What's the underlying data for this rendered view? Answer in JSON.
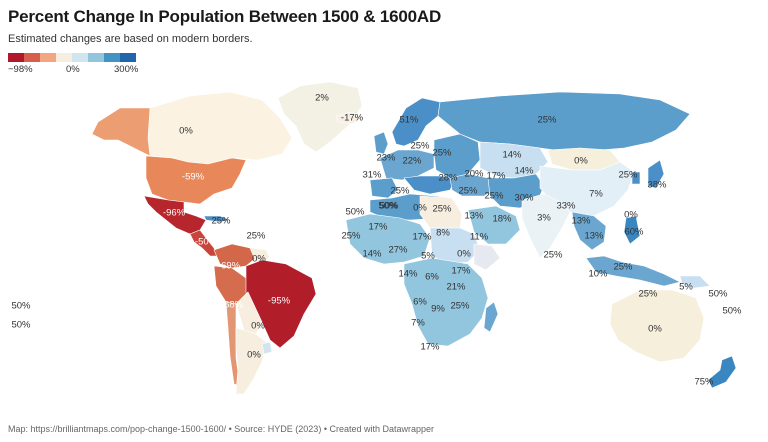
{
  "header": {
    "title": "Percent Change In Population Between 1500 & 1600AD",
    "subtitle": "Estimated changes are based on modern borders."
  },
  "legend": {
    "min_label": "−98%",
    "mid_label": "0%",
    "max_label": "300%",
    "colors": [
      "#b2182b",
      "#d6604d",
      "#f4a582",
      "#f7eee0",
      "#d1e5f0",
      "#92c5de",
      "#4393c3",
      "#2166ac"
    ]
  },
  "map": {
    "labels": [
      {
        "text": "2%",
        "key": "greenland"
      },
      {
        "text": "-17%",
        "key": "iceland"
      },
      {
        "text": "0%",
        "key": "canada"
      },
      {
        "text": "-59%",
        "key": "usa"
      },
      {
        "text": "-96%",
        "key": "mexico"
      },
      {
        "text": "25%",
        "key": "cuba"
      },
      {
        "text": "-50%",
        "key": "central-america"
      },
      {
        "text": "25%",
        "key": "dominican"
      },
      {
        "text": "-69%",
        "key": "venezuela"
      },
      {
        "text": "0%",
        "key": "guyana"
      },
      {
        "text": "-68%",
        "key": "peru"
      },
      {
        "text": "-95%",
        "key": "brazil"
      },
      {
        "text": "0%",
        "key": "paraguay"
      },
      {
        "text": "0%",
        "key": "argentina"
      },
      {
        "text": "50%",
        "key": "pacific-1"
      },
      {
        "text": "50%",
        "key": "pacific-2"
      },
      {
        "text": "51%",
        "key": "scandinavia"
      },
      {
        "text": "25%",
        "key": "russia"
      },
      {
        "text": "25%",
        "key": "baltic"
      },
      {
        "text": "25%",
        "key": "belarus"
      },
      {
        "text": "23%",
        "key": "uk"
      },
      {
        "text": "22%",
        "key": "germany"
      },
      {
        "text": "31%",
        "key": "france"
      },
      {
        "text": "50%",
        "key": "italy"
      },
      {
        "text": "28%",
        "key": "ukraine"
      },
      {
        "text": "25%",
        "key": "spain"
      },
      {
        "text": "20%",
        "key": "kazakh-west"
      },
      {
        "text": "14%",
        "key": "kazakh-east"
      },
      {
        "text": "17%",
        "key": "uzbek"
      },
      {
        "text": "14%",
        "key": "kyrgyz"
      },
      {
        "text": "25%",
        "key": "turkey"
      },
      {
        "text": "25%",
        "key": "iran"
      },
      {
        "text": "30%",
        "key": "afghanistan"
      },
      {
        "text": "0%",
        "key": "mongolia"
      },
      {
        "text": "7%",
        "key": "china"
      },
      {
        "text": "25%",
        "key": "korea"
      },
      {
        "text": "38%",
        "key": "japan"
      },
      {
        "text": "50%",
        "key": "morocco"
      },
      {
        "text": "50%",
        "key": "algeria"
      },
      {
        "text": "0%",
        "key": "libya"
      },
      {
        "text": "25%",
        "key": "egypt"
      },
      {
        "text": "13%",
        "key": "saudi"
      },
      {
        "text": "18%",
        "key": "oman"
      },
      {
        "text": "3%",
        "key": "pakistan"
      },
      {
        "text": "33%",
        "key": "india-north"
      },
      {
        "text": "13%",
        "key": "myanmar"
      },
      {
        "text": "0%",
        "key": "taiwan"
      },
      {
        "text": "60%",
        "key": "philippines"
      },
      {
        "text": "13%",
        "key": "vietnam"
      },
      {
        "text": "25%",
        "key": "sri-lanka"
      },
      {
        "text": "10%",
        "key": "malaysia"
      },
      {
        "text": "25%",
        "key": "borneo"
      },
      {
        "text": "25%",
        "key": "indonesia"
      },
      {
        "text": "5%",
        "key": "png"
      },
      {
        "text": "50%",
        "key": "melanesia-1"
      },
      {
        "text": "50%",
        "key": "melanesia-2"
      },
      {
        "text": "0%",
        "key": "australia"
      },
      {
        "text": "75%",
        "key": "new-zealand"
      },
      {
        "text": "25%",
        "key": "west-africa"
      },
      {
        "text": "17%",
        "key": "mali"
      },
      {
        "text": "17%",
        "key": "niger"
      },
      {
        "text": "8%",
        "key": "chad"
      },
      {
        "text": "11%",
        "key": "sudan"
      },
      {
        "text": "14%",
        "key": "guinea"
      },
      {
        "text": "27%",
        "key": "nigeria"
      },
      {
        "text": "5%",
        "key": "car"
      },
      {
        "text": "0%",
        "key": "ethiopia"
      },
      {
        "text": "14%",
        "key": "congo"
      },
      {
        "text": "6%",
        "key": "drc"
      },
      {
        "text": "17%",
        "key": "kenya"
      },
      {
        "text": "21%",
        "key": "tanzania"
      },
      {
        "text": "6%",
        "key": "angola"
      },
      {
        "text": "9%",
        "key": "zambia"
      },
      {
        "text": "25%",
        "key": "mozambique"
      },
      {
        "text": "7%",
        "key": "namibia"
      },
      {
        "text": "17%",
        "key": "south-africa"
      }
    ]
  },
  "footer": {
    "source": "Map: https://brilliantmaps.com/pop-change-1500-1600/ • Source: HYDE (2023) • Created with Datawrapper"
  }
}
